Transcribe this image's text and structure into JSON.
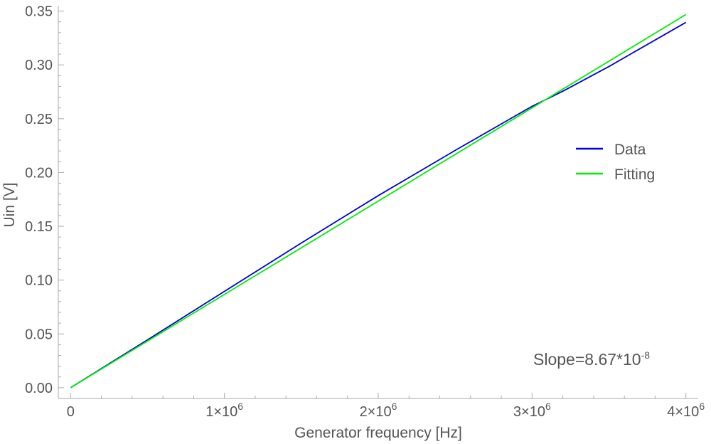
{
  "chart_data": {
    "type": "line",
    "xlabel": "Generator frequency [Hz]",
    "ylabel": "Uin [V]",
    "xlim": [
      -80000,
      4080000
    ],
    "ylim": [
      -0.01,
      0.355
    ],
    "x_ticks": [
      {
        "value": 0,
        "label": "0",
        "mantissa": "",
        "exponent": ""
      },
      {
        "value": 1000000,
        "label": "1×10^6",
        "mantissa": "1",
        "exponent": "6"
      },
      {
        "value": 2000000,
        "label": "2×10^6",
        "mantissa": "2",
        "exponent": "6"
      },
      {
        "value": 3000000,
        "label": "3×10^6",
        "mantissa": "3",
        "exponent": "6"
      },
      {
        "value": 4000000,
        "label": "4×10^6",
        "mantissa": "4",
        "exponent": "6"
      }
    ],
    "y_ticks": [
      {
        "value": 0.0,
        "label": "0.00"
      },
      {
        "value": 0.05,
        "label": "0.05"
      },
      {
        "value": 0.1,
        "label": "0.10"
      },
      {
        "value": 0.15,
        "label": "0.15"
      },
      {
        "value": 0.2,
        "label": "0.20"
      },
      {
        "value": 0.25,
        "label": "0.25"
      },
      {
        "value": 0.3,
        "label": "0.30"
      },
      {
        "value": 0.35,
        "label": "0.35"
      }
    ],
    "series": [
      {
        "name": "Data",
        "color": "#0000dd",
        "x": [
          0,
          500000,
          1000000,
          1500000,
          2000000,
          2500000,
          3000000,
          3200000,
          3500000,
          4000000
        ],
        "y": [
          0.0,
          0.0445,
          0.0895,
          0.1345,
          0.1785,
          0.2205,
          0.2615,
          0.2755,
          0.2985,
          0.3395
        ]
      },
      {
        "name": "Fitting",
        "color": "#00ee00",
        "x": [
          0,
          4000000
        ],
        "y": [
          0.0,
          0.3468
        ]
      }
    ],
    "legend": {
      "placement": "right",
      "entries": [
        "Data",
        "Fitting"
      ]
    },
    "annotation": {
      "text": "Slope=8.67*10-8",
      "base": "Slope=8.67*10",
      "exponent": "-8"
    },
    "grid": false
  }
}
